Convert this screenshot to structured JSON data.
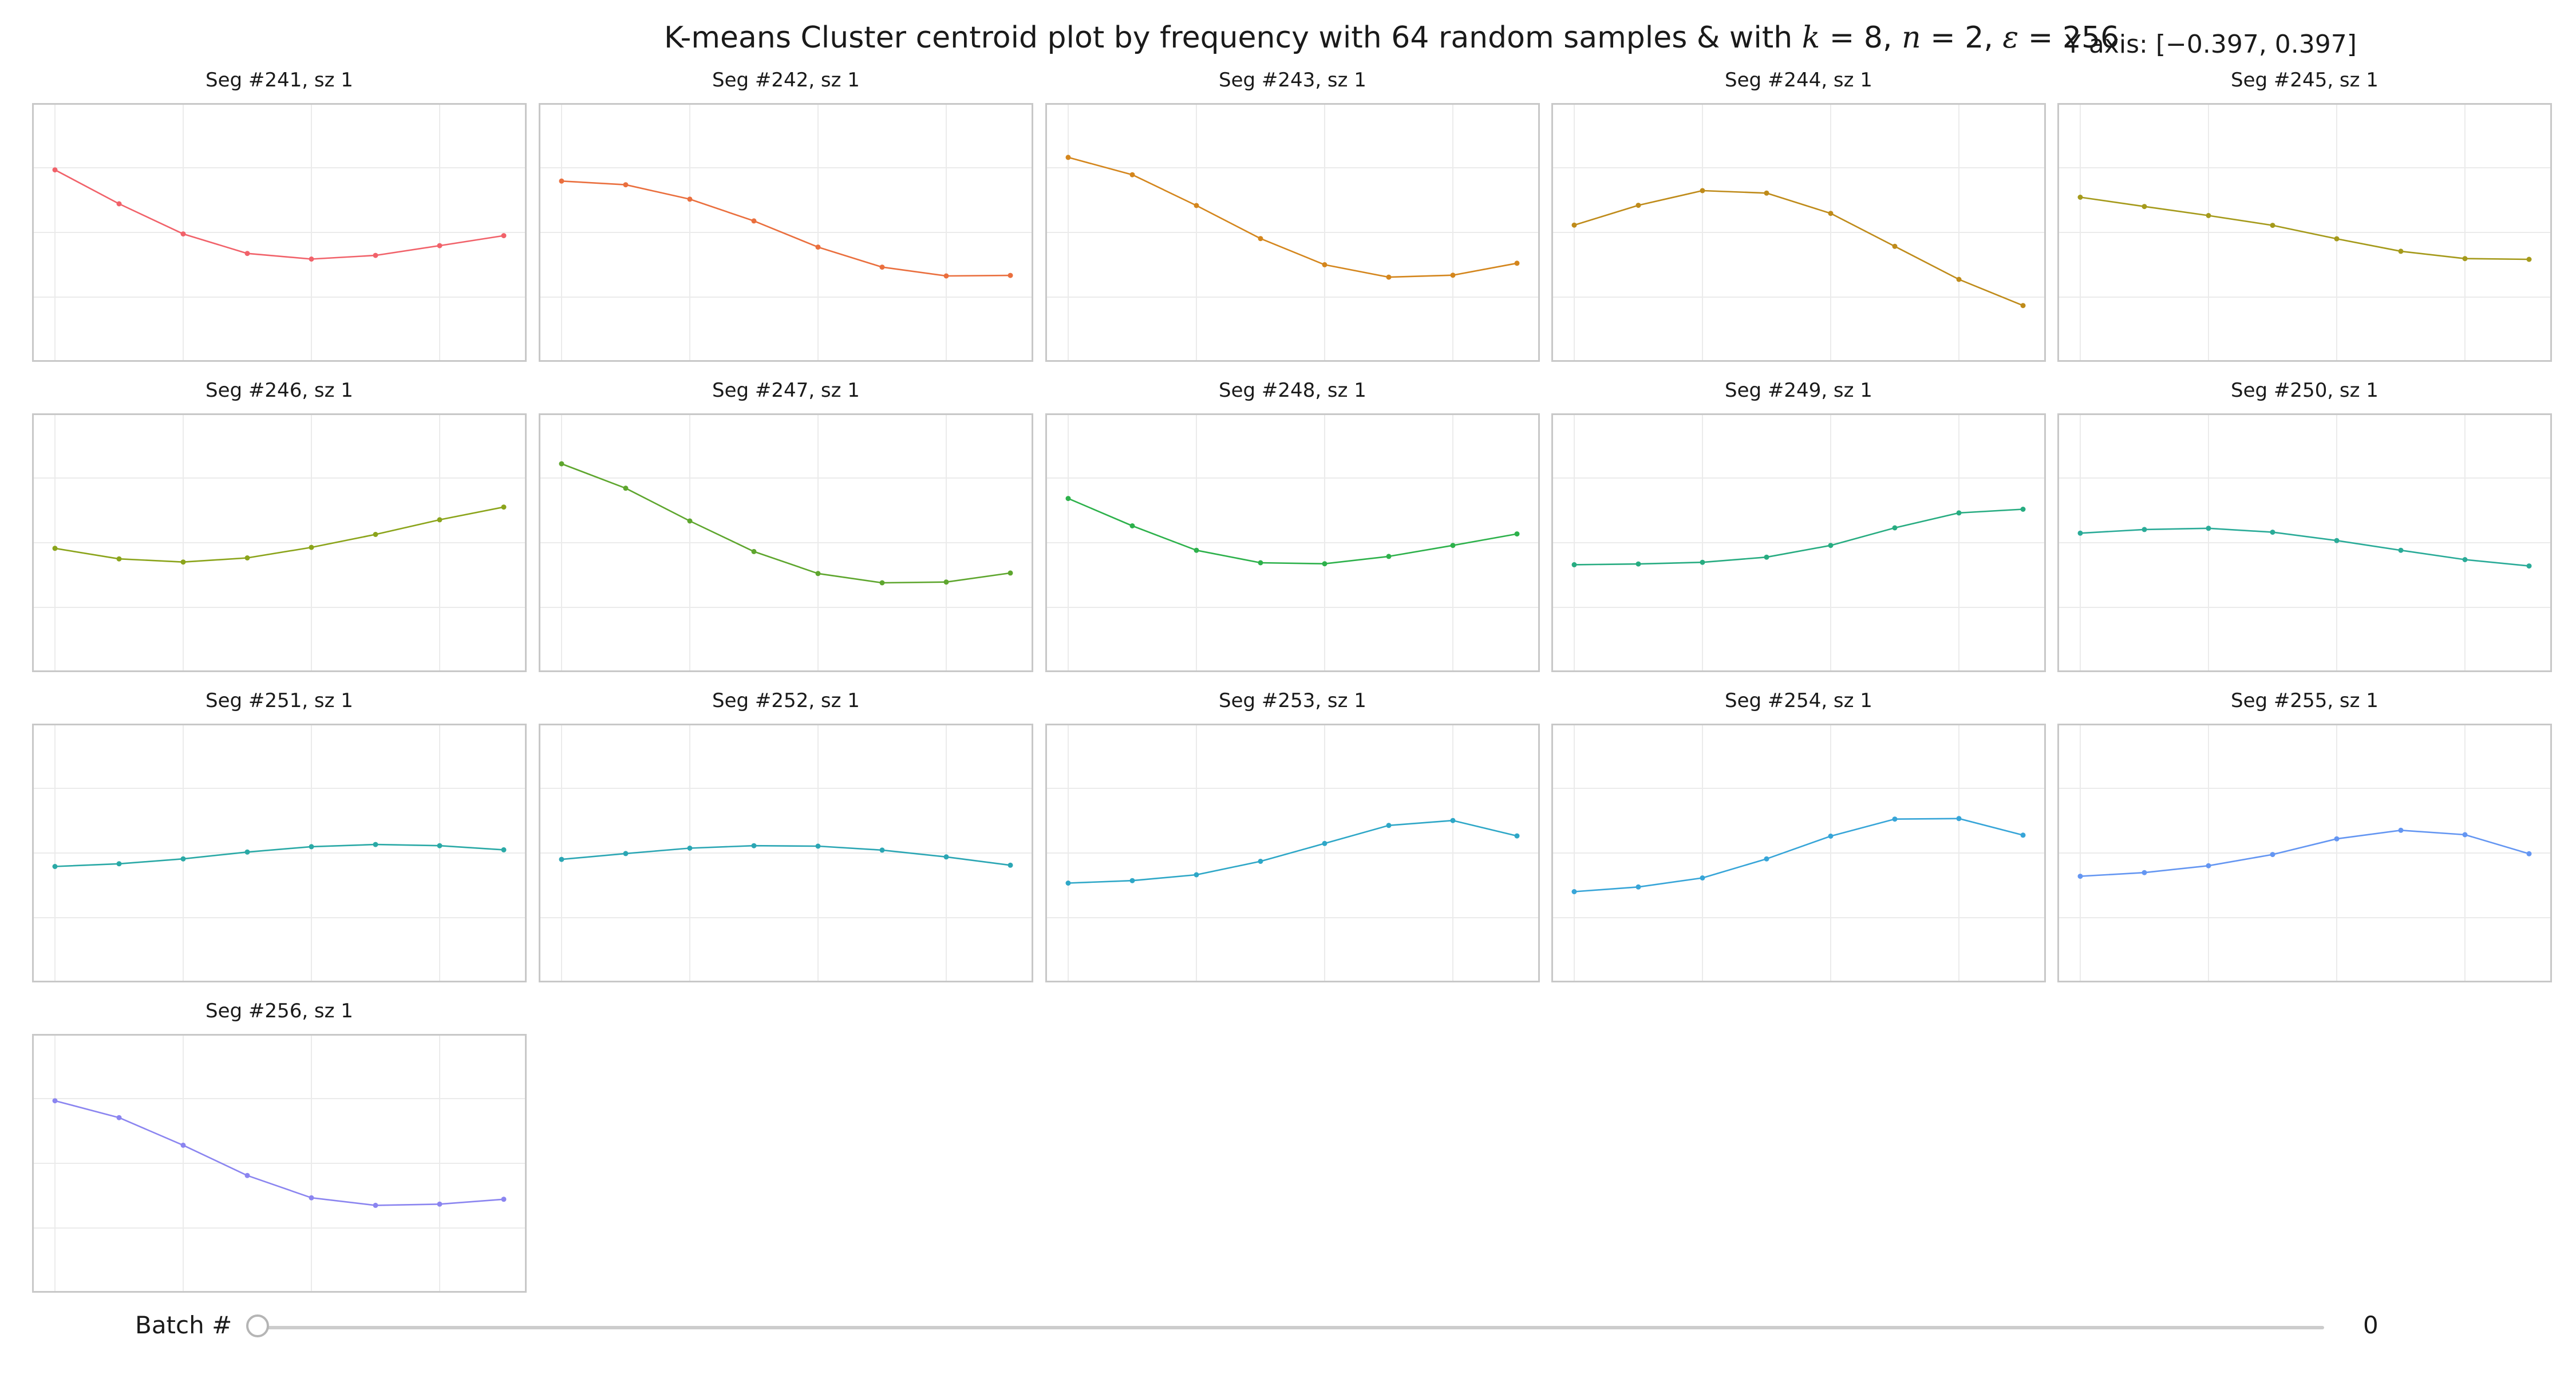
{
  "title_prefix": "K-means Cluster centroid plot by frequency with 64 random samples & with ",
  "title_params": [
    {
      "symbol": "k",
      "value": "8"
    },
    {
      "symbol": "n",
      "value": "2"
    },
    {
      "symbol": "ε",
      "value": "256"
    }
  ],
  "y_axis_label": "Y axis: [−0.397, 0.397]",
  "controls": {
    "batch_label": "Batch #",
    "batch_value": "0"
  },
  "colors": [
    "#f1626a",
    "#ea6f3e",
    "#d4861d",
    "#bf8b1a",
    "#a59a1b",
    "#8ba41b",
    "#5ea62e",
    "#2db14b",
    "#27ac81",
    "#2aab98",
    "#2aa9a6",
    "#2ba6b4",
    "#2ea7c7",
    "#37a5d8",
    "#6496f2",
    "#8b85f0"
  ],
  "chart_data": {
    "type": "line",
    "layout": "small multiples, 5 columns",
    "ylim": [
      -0.397,
      0.397
    ],
    "x": [
      0,
      1,
      2,
      3,
      4,
      5,
      6,
      7
    ],
    "grid": true,
    "legend": "none",
    "panels": [
      {
        "title": "Seg #241, sz 1",
        "values": [
          0.256,
          0.117,
          -0.006,
          -0.086,
          -0.109,
          -0.094,
          -0.054,
          -0.013
        ]
      },
      {
        "title": "Seg #242, sz 1",
        "values": [
          0.21,
          0.195,
          0.136,
          0.047,
          -0.06,
          -0.142,
          -0.178,
          -0.176
        ]
      },
      {
        "title": "Seg #243, sz 1",
        "values": [
          0.307,
          0.236,
          0.11,
          -0.025,
          -0.132,
          -0.183,
          -0.175,
          -0.126
        ]
      },
      {
        "title": "Seg #244, sz 1",
        "values": [
          0.03,
          0.111,
          0.171,
          0.161,
          0.078,
          -0.057,
          -0.192,
          -0.299
        ]
      },
      {
        "title": "Seg #245, sz 1",
        "values": [
          0.144,
          0.106,
          0.069,
          0.029,
          -0.026,
          -0.077,
          -0.107,
          -0.11
        ]
      },
      {
        "title": "Seg #246, sz 1",
        "values": [
          -0.023,
          -0.066,
          -0.079,
          -0.062,
          -0.019,
          0.034,
          0.094,
          0.146
        ]
      },
      {
        "title": "Seg #247, sz 1",
        "values": [
          0.323,
          0.223,
          0.089,
          -0.036,
          -0.126,
          -0.164,
          -0.161,
          -0.124
        ]
      },
      {
        "title": "Seg #248, sz 1",
        "values": [
          0.181,
          0.069,
          -0.031,
          -0.082,
          -0.086,
          -0.056,
          -0.011,
          0.036
        ]
      },
      {
        "title": "Seg #249, sz 1",
        "values": [
          -0.09,
          -0.087,
          -0.08,
          -0.059,
          -0.011,
          0.061,
          0.122,
          0.137
        ]
      },
      {
        "title": "Seg #250, sz 1",
        "values": [
          0.039,
          0.054,
          0.059,
          0.043,
          0.009,
          -0.031,
          -0.069,
          -0.095
        ]
      },
      {
        "title": "Seg #251, sz 1",
        "values": [
          -0.055,
          -0.044,
          -0.024,
          0.004,
          0.026,
          0.035,
          0.03,
          0.013
        ]
      },
      {
        "title": "Seg #252, sz 1",
        "values": [
          -0.026,
          -0.002,
          0.02,
          0.03,
          0.028,
          0.012,
          -0.016,
          -0.05
        ]
      },
      {
        "title": "Seg #253, sz 1",
        "values": [
          -0.123,
          -0.113,
          -0.089,
          -0.034,
          0.039,
          0.113,
          0.133,
          0.07
        ]
      },
      {
        "title": "Seg #254, sz 1",
        "values": [
          -0.158,
          -0.139,
          -0.102,
          -0.024,
          0.069,
          0.139,
          0.141,
          0.073
        ]
      },
      {
        "title": "Seg #255, sz 1",
        "values": [
          -0.095,
          -0.08,
          -0.052,
          -0.006,
          0.058,
          0.093,
          0.075,
          -0.003
        ]
      },
      {
        "title": "Seg #256, sz 1",
        "values": [
          0.256,
          0.187,
          0.074,
          -0.05,
          -0.141,
          -0.172,
          -0.167,
          -0.147
        ]
      }
    ]
  }
}
